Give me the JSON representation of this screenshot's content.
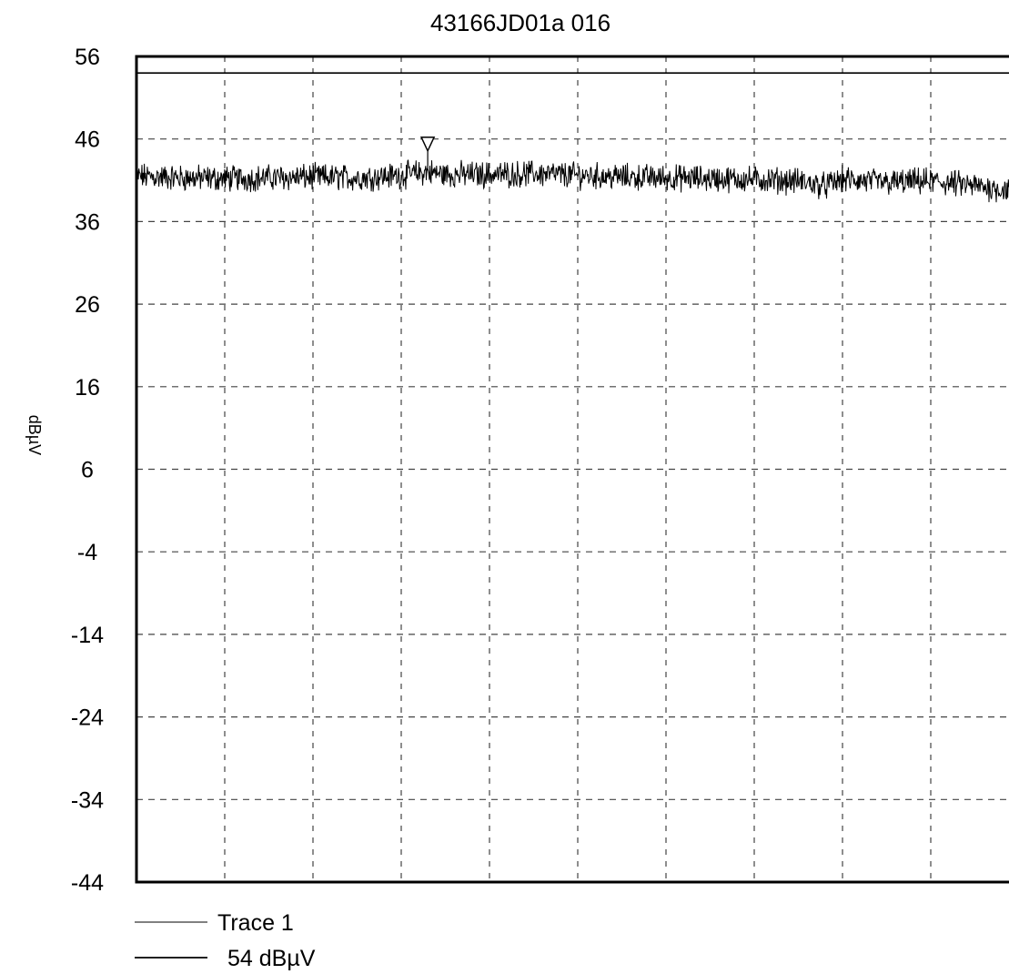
{
  "chart_data": {
    "type": "line",
    "title": "43166JD01a 016",
    "ylabel": "dBµV",
    "xlabel": "",
    "ylim": [
      -44,
      56
    ],
    "yticks": [
      56,
      46,
      36,
      26,
      16,
      6,
      -4,
      -14,
      -24,
      -34,
      -44
    ],
    "x_divisions": 10,
    "grid": true,
    "legend_position": "bottom-left",
    "marker": {
      "label": "marker-triangle",
      "x_division": 3.3,
      "y": 45
    },
    "series": [
      {
        "name": "Trace 1",
        "style": "thin-noisy",
        "x_division": [
          0,
          0.5,
          1,
          1.5,
          2,
          2.5,
          3,
          3.3,
          3.5,
          4,
          4.5,
          5,
          5.5,
          6,
          6.5,
          7,
          7.5,
          7.8,
          8,
          8.5,
          9,
          9.5,
          9.9
        ],
        "values": [
          41.5,
          41.3,
          41.2,
          41.3,
          41.4,
          41.3,
          41.6,
          42.0,
          41.7,
          41.7,
          41.8,
          41.6,
          41.4,
          41.3,
          41.2,
          41.1,
          40.9,
          40.3,
          41.1,
          40.7,
          40.9,
          40.3,
          39.8
        ]
      },
      {
        "name": "54 dBµV",
        "style": "limit-line",
        "values": [
          54
        ]
      }
    ],
    "legend": [
      {
        "label": "Trace 1",
        "style": "thin"
      },
      {
        "label": "54 dBµV",
        "style": "thick"
      }
    ]
  }
}
